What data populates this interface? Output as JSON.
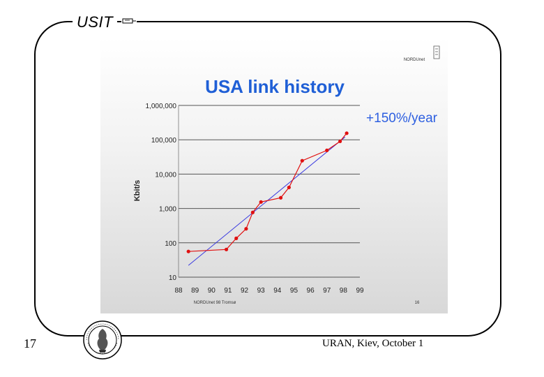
{
  "header": {
    "brand": "USIT"
  },
  "footer": {
    "slide_number": "17",
    "text": "URAN, Kiev, October 1"
  },
  "panel": {
    "logo_text": "NORDUnet",
    "footnote_left": "NORDUnet 98 Tromsø",
    "footnote_right": "16"
  },
  "colors": {
    "title": "#1f5fd6",
    "series": "#e01010",
    "trend": "#3a3ae0",
    "annotation": "#2d5fe0"
  },
  "chart_data": {
    "type": "line",
    "title": "USA link history",
    "annotation": "+150%/year",
    "ylabel": "Kbit/s",
    "xlabel": "",
    "yscale": "log",
    "ylim": [
      10,
      1000000
    ],
    "xlim": [
      88,
      99
    ],
    "yticks": [
      "1,000,000",
      "100,000",
      "10,000",
      "1,000",
      "100",
      "10"
    ],
    "xticks": [
      "88",
      "89",
      "90",
      "91",
      "92",
      "93",
      "94",
      "95",
      "96",
      "97",
      "98",
      "99"
    ],
    "grid": "horizontal",
    "series": [
      {
        "x": [
          88.6,
          90.9,
          91.5,
          92.1,
          92.5,
          93.0,
          94.2,
          94.7,
          95.5,
          97.0,
          97.8,
          98.2
        ],
        "y": [
          56,
          64,
          135,
          256,
          768,
          1544,
          2048,
          4096,
          24576,
          49152,
          90000,
          155000
        ]
      }
    ],
    "trend": {
      "x": [
        88.6,
        98.1
      ],
      "y": [
        22,
        120000
      ]
    }
  }
}
